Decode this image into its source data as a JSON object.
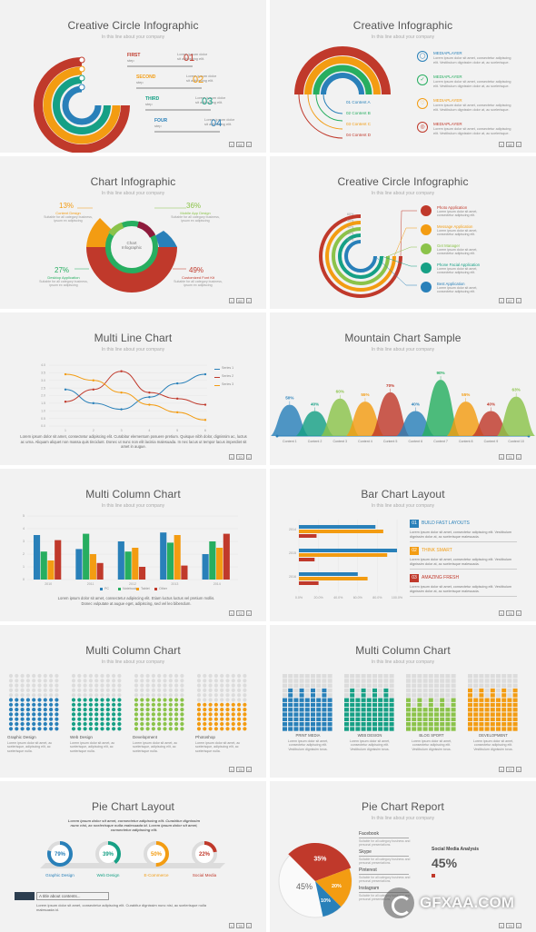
{
  "colors": {
    "red": "#c0392b",
    "orange": "#f39c12",
    "green": "#27ae60",
    "teal": "#16a085",
    "blue": "#2980b9",
    "lime": "#8bc34a",
    "yellow": "#f1c40f",
    "gray": "#dddddd"
  },
  "subtitle": "In this line about your company",
  "slides": [
    {
      "title": "Creative Circle Infographic",
      "page": "64",
      "steps": [
        {
          "word": "FIRST",
          "sub": "step",
          "num": "01"
        },
        {
          "word": "SECOND",
          "sub": "step",
          "num": "02"
        },
        {
          "word": "THIRD",
          "sub": "step",
          "num": "03"
        },
        {
          "word": "FOUR",
          "sub": "step",
          "num": "04"
        }
      ],
      "step_text": "Lorem ipsum dolor sit adipiscing elit."
    },
    {
      "title": "Creative Infographic",
      "page": "68",
      "content_labels": [
        "01  Content A",
        "02  Content B",
        "03  Content C",
        "04  Content D"
      ],
      "items": [
        "MEDIAPLAYER",
        "MEDIAPLAYER",
        "MEDIAPLAYER",
        "MEDIAPLAYER"
      ]
    },
    {
      "title": "Chart Infographic",
      "page": "69",
      "center": "Chart Infographic",
      "callouts": [
        {
          "pct": "13%",
          "name": "Content Design"
        },
        {
          "pct": "36%",
          "name": "Mobile App Design"
        },
        {
          "pct": "27%",
          "name": "Desktop Application"
        },
        {
          "pct": "49%",
          "name": "Customized Font Kit"
        }
      ]
    },
    {
      "title": "Creative Circle Infographic",
      "page": "67",
      "apps": [
        "Photo Application",
        "Message Application",
        "Get Manager",
        "Phone Facial Application",
        "Best Application"
      ],
      "ring_pcts": [
        "60%",
        "50%",
        "40%",
        "30%",
        "20%"
      ]
    },
    {
      "title": "Multi Line Chart",
      "page": "70",
      "legend": [
        "Series 1",
        "Series 2",
        "Series 3"
      ],
      "body": "Lorem ipsum dolor sit amet, consectetur adipiscing elit. Curabitur elementum posuere pretium. Quisque nibh dolor, dignissim ac, luctus ac urna. Aliquam aliquet non massa quis tincidunt. Donec ut nunc non elit lacinia malesuada. In nec lacus ut tempor lacus imperdiet sit amet in augue."
    },
    {
      "title": "Mountain Chart Sample",
      "page": "71"
    },
    {
      "title": "Multi Column Chart",
      "page": "72",
      "legend": [
        "PC",
        "Notebook",
        "Tablet",
        "Other"
      ],
      "body": "Lorem ipsum dolor sit amet, consectetur adipiscing elit. Etiam luctus luctus vel pretium mollis. Donec vulputate at augue eget, adipiscing, sed vel leo bibendum."
    },
    {
      "title": "Bar Chart Layout",
      "page": "74",
      "features": [
        {
          "num": "01",
          "name": "BUILD FAST LAYOUTS"
        },
        {
          "num": "02",
          "name": "THINK SMART"
        },
        {
          "num": "03",
          "name": "AMAZING FRESH"
        }
      ],
      "feature_text": "Lorem ipsum dolor sit amet, consectetur adipiscing elit. Vestibulum dignissim dolor at, ac scelerisque malesuada."
    },
    {
      "title": "Multi Column Chart",
      "page": "75",
      "groups": [
        "Graphic Design",
        "Web Design",
        "Development",
        "Photoshop"
      ],
      "group_text": "Lorem ipsum dolor sit amet, ac scelerisque, adipiscing elit, ac scelerisque nulla."
    },
    {
      "title": "Multi Column Chart",
      "page": "77",
      "groups": [
        "PRINT MEDIA",
        "WEB DESIGN",
        "BLOG SPORT",
        "DEVELOPMENT"
      ],
      "group_text": "Lorem ipsum dolor sit amet, consectetur adipiscing elit. Vestibulum dignissim lorus."
    },
    {
      "title": "Pie Chart Layout",
      "page": "78",
      "lead": "Lorem ipsum dolor sit amet, consectetur adipiscing elit. Curabitur dignissim nunc nisi, ac scelerisque nulla malesuada id. Lorem ipsum dolor sit amet, consectetur adipiscing elit.",
      "donuts": [
        {
          "pct": "79%",
          "name": "Graphic Design"
        },
        {
          "pct": "39%",
          "name": "Web Design"
        },
        {
          "pct": "50%",
          "name": "E-Commerce"
        },
        {
          "pct": "22%",
          "name": "Social Media"
        }
      ],
      "box_title": "A title about contents...",
      "box_text": "Lorem ipsum dolor sit amet, consectetur adipiscing elit. Curabitur dignissim nunc nisi, ac scelerisque nulla malesuada id."
    },
    {
      "title": "Pie Chart Report",
      "page": "79",
      "slices": [
        "35%",
        "20%",
        "10%",
        "45%"
      ],
      "legend": [
        "Facebook",
        "Skype",
        "Pinterest",
        "Instagram"
      ],
      "analysis_title": "Social Media Analysis",
      "analysis_pct": "45%"
    }
  ],
  "chart_data": [
    {
      "type": "line",
      "title": "Multi Line Chart",
      "series": [
        {
          "name": "Series 1",
          "values": [
            2.4,
            1.5,
            1.1,
            1.9,
            2.8,
            3.4
          ]
        },
        {
          "name": "Series 2",
          "values": [
            1.6,
            2.4,
            3.6,
            2.2,
            1.8,
            1.4
          ]
        },
        {
          "name": "Series 3",
          "values": [
            3.4,
            3.0,
            2.2,
            1.4,
            0.9,
            0.4
          ]
        }
      ],
      "x": [
        1,
        2,
        3,
        4,
        5,
        6
      ],
      "ylim": [
        0,
        4
      ]
    },
    {
      "type": "area",
      "title": "Mountain Chart Sample",
      "categories": [
        "Content 1",
        "Content 2",
        "Content 3",
        "Content 4",
        "Content 5",
        "Content 6",
        "Content 7",
        "Content 8",
        "Content 9",
        "Content 10"
      ],
      "values": [
        50,
        40,
        60,
        55,
        70,
        40,
        90,
        55,
        40,
        63
      ],
      "labels": [
        "50%",
        "40%",
        "60%",
        "55%",
        "70%",
        "40%",
        "90%",
        "55%",
        "40%",
        "63%"
      ],
      "ylim": [
        0,
        100
      ]
    },
    {
      "type": "bar",
      "title": "Multi Column Chart",
      "categories": [
        "2010",
        "2011",
        "2012",
        "2013",
        "2014"
      ],
      "series": [
        {
          "name": "PC",
          "values": [
            3.5,
            2.4,
            3.0,
            3.7,
            2.0
          ]
        },
        {
          "name": "Notebook",
          "values": [
            2.2,
            3.6,
            2.2,
            2.9,
            3.0
          ]
        },
        {
          "name": "Tablet",
          "values": [
            1.5,
            2.0,
            2.5,
            3.5,
            2.5
          ]
        },
        {
          "name": "Other",
          "values": [
            3.1,
            1.3,
            1.0,
            1.1,
            3.6
          ]
        }
      ],
      "ylim": [
        0,
        5
      ]
    },
    {
      "type": "bar",
      "title": "Bar Chart Layout",
      "orientation": "horizontal",
      "categories": [
        "2014",
        "2015",
        "2016"
      ],
      "series": [
        {
          "name": "A",
          "values": [
            78,
            100,
            60
          ]
        },
        {
          "name": "B",
          "values": [
            86,
            90,
            70
          ]
        },
        {
          "name": "C",
          "values": [
            18,
            16,
            20
          ]
        }
      ],
      "xticks": [
        "0.0%",
        "20.0%",
        "40.0%",
        "60.0%",
        "80.0%",
        "100.0%"
      ],
      "xlim": [
        0,
        100
      ]
    },
    {
      "type": "pie",
      "title": "Pie Chart Report",
      "categories": [
        "Facebook",
        "Skype",
        "Pinterest",
        "Instagram"
      ],
      "values": [
        35,
        20,
        10,
        45
      ]
    }
  ]
}
